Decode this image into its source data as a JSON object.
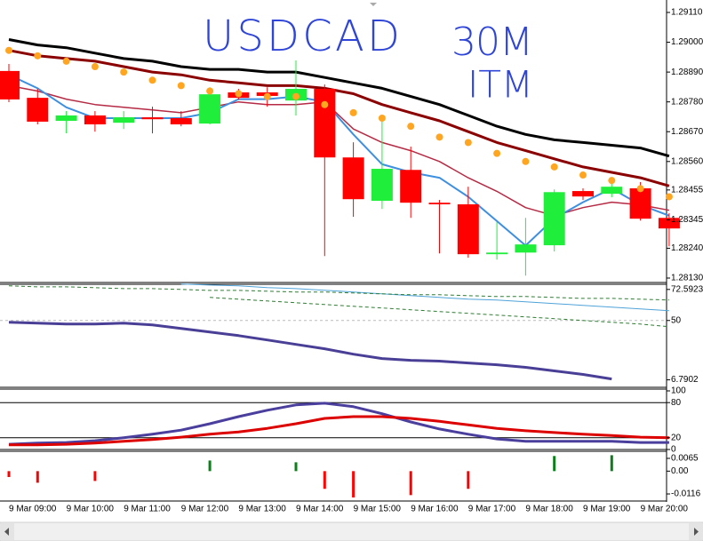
{
  "chart_data": [
    {
      "type": "candlestick",
      "title": "USDCAD",
      "annotations": [
        "30M",
        "ITM"
      ],
      "categories": [
        "9 Mar 09:00",
        null,
        "9 Mar 10:00",
        null,
        "9 Mar 11:00",
        null,
        "9 Mar 12:00",
        null,
        "9 Mar 13:00",
        null,
        "9 Mar 14:00",
        null,
        "9 Mar 15:00",
        null,
        "9 Mar 16:00",
        null,
        "9 Mar 17:00",
        null,
        "9 Mar 18:00",
        null,
        "9 Mar 19:00",
        null,
        "9 Mar 20:00",
        null
      ],
      "open": [
        1.28894,
        1.28795,
        1.2871,
        1.2873,
        1.28703,
        1.28723,
        1.2872,
        1.287,
        1.28815,
        1.28815,
        1.28785,
        1.28828,
        1.28575,
        1.28415,
        1.28529,
        1.28408,
        1.28402,
        1.28218,
        1.28224,
        1.28251,
        1.28451,
        1.28441,
        1.28461,
        1.28352
      ],
      "high": [
        1.2892,
        1.28828,
        1.28746,
        1.28746,
        1.28746,
        1.28762,
        1.28746,
        1.28834,
        1.28828,
        1.28834,
        1.28933,
        1.28844,
        1.28631,
        1.28713,
        1.28615,
        1.28418,
        1.28467,
        1.28336,
        1.28352,
        1.28457,
        1.28461,
        1.285,
        1.28484,
        1.28369
      ],
      "low": [
        1.28779,
        1.28697,
        1.28664,
        1.2867,
        1.2868,
        1.28664,
        1.2869,
        1.28697,
        1.28789,
        1.28762,
        1.2873,
        1.28211,
        1.28356,
        1.28385,
        1.28352,
        1.28221,
        1.28205,
        1.28198,
        1.28139,
        1.28228,
        1.28418,
        1.28428,
        1.28342,
        1.28247
      ],
      "close": [
        1.28789,
        1.28707,
        1.2873,
        1.28697,
        1.28723,
        1.28716,
        1.28697,
        1.28808,
        1.28795,
        1.28802,
        1.28828,
        1.28575,
        1.28421,
        1.28533,
        1.28408,
        1.28402,
        1.28218,
        1.28224,
        1.28254,
        1.28447,
        1.28431,
        1.28467,
        1.28349,
        1.28313
      ],
      "up_color": "#1fee3a",
      "down_color": "#ff0000",
      "overlays": [
        {
          "color": "#000000",
          "width": 3,
          "values": [
            1.2901,
            1.2899,
            1.2898,
            1.2896,
            1.2894,
            1.2893,
            1.2891,
            1.289,
            1.289,
            1.2889,
            1.2889,
            1.2887,
            1.2885,
            1.2883,
            1.288,
            1.2877,
            1.2873,
            1.2869,
            1.2866,
            1.2864,
            1.2863,
            1.2862,
            1.2861,
            1.2858
          ]
        },
        {
          "color": "#8b0000",
          "width": 3,
          "values": [
            1.2897,
            1.2895,
            1.2894,
            1.2893,
            1.2891,
            1.2889,
            1.2888,
            1.2886,
            1.2885,
            1.2884,
            1.2884,
            1.2883,
            1.2881,
            1.2877,
            1.2874,
            1.2871,
            1.2867,
            1.2863,
            1.286,
            1.2857,
            1.2854,
            1.2852,
            1.285,
            1.2847
          ]
        },
        {
          "color": "#b52a44",
          "width": 1.5,
          "values": [
            1.2884,
            1.2882,
            1.2879,
            1.2877,
            1.2876,
            1.2875,
            1.2874,
            1.2876,
            1.2878,
            1.2877,
            1.2877,
            1.2878,
            1.2868,
            1.2863,
            1.286,
            1.2856,
            1.285,
            1.2845,
            1.2839,
            1.2836,
            1.2839,
            1.2841,
            1.284,
            1.2838
          ]
        },
        {
          "color": "#3d8fe0",
          "width": 2,
          "values": [
            1.2888,
            1.2883,
            1.2876,
            1.2872,
            1.2872,
            1.2872,
            1.2872,
            1.2874,
            1.2879,
            1.2879,
            1.288,
            1.2878,
            1.2866,
            1.2855,
            1.2852,
            1.285,
            1.2843,
            1.2834,
            1.2825,
            1.2835,
            1.2841,
            1.2846,
            1.284,
            1.2836
          ]
        }
      ],
      "dots": {
        "color": "#ffa51f",
        "values": [
          1.2897,
          1.2895,
          1.2893,
          1.2891,
          1.2889,
          1.2886,
          1.2884,
          1.2882,
          1.2881,
          1.288,
          1.288,
          1.2877,
          1.2874,
          1.2872,
          1.2869,
          1.2865,
          1.2863,
          1.2859,
          1.2856,
          1.2854,
          1.2851,
          1.2849,
          1.2846,
          1.2843
        ]
      },
      "ylim": [
        1.2813,
        1.2911
      ],
      "yticks": [
        {
          "value": 1.2911,
          "label": "1.29110"
        },
        {
          "value": 1.29,
          "label": "1.29000"
        },
        {
          "value": 1.2889,
          "label": "1.28890"
        },
        {
          "value": 1.2878,
          "label": "1.28780"
        },
        {
          "value": 1.2867,
          "label": "1.28670"
        },
        {
          "value": 1.2856,
          "label": "1.28560"
        },
        1.28455,
        1.28345,
        {
          "value": 1.2824,
          "label": "1.28240"
        },
        {
          "value": 1.2813,
          "label": "1.28130"
        }
      ]
    },
    {
      "type": "line",
      "ylim": [
        2,
        77
      ],
      "yticks": [
        72.5923,
        50,
        6.7902
      ],
      "levels": [
        50
      ],
      "lines": [
        {
          "color": "#4fa3d8",
          "width": 1,
          "dash": false,
          "values": [
            null,
            null,
            null,
            null,
            null,
            null,
            76.5,
            75.8,
            75.2,
            73.9,
            73.2,
            72.0,
            70.7,
            69.4,
            68.1,
            66.8,
            65.5,
            64.9,
            63.6,
            62.3,
            61.0,
            59.7,
            58.4,
            57.1
          ]
        },
        {
          "color": "#2e7d32",
          "width": 1,
          "dash": true,
          "values": [
            75.2,
            74.5,
            74.5,
            73.9,
            73.2,
            73.2,
            72.6,
            71.9,
            71.9,
            71.3,
            70.7,
            70.7,
            70.0,
            69.4,
            68.7,
            68.7,
            68.1,
            67.4,
            67.4,
            66.8,
            66.1,
            66.1,
            65.5,
            64.9
          ]
        },
        {
          "color": "#2e7d32",
          "width": 1,
          "dash": true,
          "values": [
            null,
            null,
            null,
            null,
            null,
            null,
            null,
            66.8,
            65.5,
            64.2,
            62.9,
            61.6,
            60.3,
            59.1,
            57.8,
            56.5,
            55.2,
            53.9,
            52.6,
            51.3,
            50.0,
            48.7,
            47.4,
            45.5
          ]
        },
        {
          "color": "#4a3f96",
          "width": 3,
          "dash": false,
          "values": [
            48.7,
            48.1,
            47.4,
            47.4,
            48.1,
            46.8,
            44.2,
            41.6,
            39.0,
            35.8,
            32.6,
            29.4,
            25.5,
            22.3,
            21.0,
            20.4,
            19.1,
            17.8,
            15.9,
            13.3,
            10.7,
            7.4,
            null,
            null
          ]
        }
      ]
    },
    {
      "type": "line",
      "ylim": [
        0,
        100
      ],
      "yticks": [
        100,
        80,
        20,
        0
      ],
      "levels": [
        80,
        20
      ],
      "lines": [
        {
          "color": "#4b3f9e",
          "width": 3,
          "dash": false,
          "values": [
            9,
            11,
            12,
            15,
            20,
            26,
            33,
            44,
            56,
            67,
            76,
            79,
            73,
            61,
            47,
            35,
            26,
            18,
            14,
            14,
            14,
            14,
            12,
            12
          ]
        },
        {
          "color": "#dd0000",
          "width": 3,
          "dash": false,
          "values": [
            8,
            8,
            9,
            11,
            14,
            17,
            21,
            26,
            30,
            36,
            44,
            53,
            56,
            56,
            53,
            48,
            42,
            36,
            32,
            29,
            26,
            24,
            21,
            20
          ]
        }
      ]
    },
    {
      "type": "bar",
      "ylim": [
        -0.0143,
        0.0101
      ],
      "yticks": [
        0.0065,
        {
          "value": 0,
          "label": "0.00"
        },
        -0.0116
      ],
      "positive_color": "#0a7f1a",
      "negative_color": "#ff0000",
      "values": [
        -0.003,
        -0.0059,
        null,
        -0.005,
        null,
        null,
        null,
        0.0054,
        null,
        null,
        0.0045,
        -0.009,
        -0.0134,
        null,
        -0.0122,
        null,
        -0.009,
        null,
        null,
        0.0077,
        null,
        0.0081,
        null,
        null
      ]
    }
  ]
}
